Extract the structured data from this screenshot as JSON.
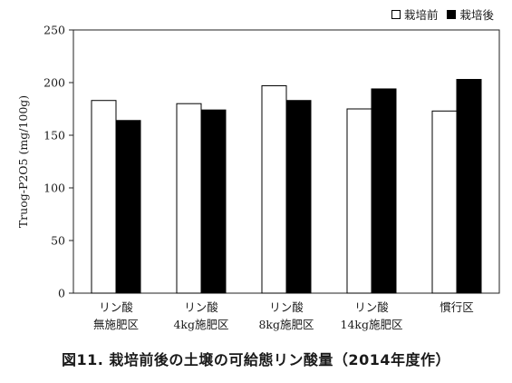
{
  "figure_caption": "図11.  栽培前後の土壌の可給態リン酸量（2014年度作）",
  "chart_data": {
    "type": "bar",
    "ylabel": "Truog-P2O5 (mg/100g)",
    "xlabel": "",
    "ylim": [
      0,
      250
    ],
    "yticks": [
      0,
      50,
      100,
      150,
      200,
      250
    ],
    "grid": false,
    "legend_position": "top-right",
    "categories": [
      [
        "リン酸",
        "無施肥区"
      ],
      [
        "リン酸",
        "4kg施肥区"
      ],
      [
        "リン酸",
        "8kg施肥区"
      ],
      [
        "リン酸",
        "14kg施肥区"
      ],
      [
        "慣行区"
      ]
    ],
    "series": [
      {
        "name": "栽培前",
        "color": "#ffffff",
        "values": [
          183,
          180,
          197,
          175,
          173
        ]
      },
      {
        "name": "栽培後",
        "color": "#000000",
        "values": [
          164,
          174,
          183,
          194,
          203
        ]
      }
    ]
  }
}
